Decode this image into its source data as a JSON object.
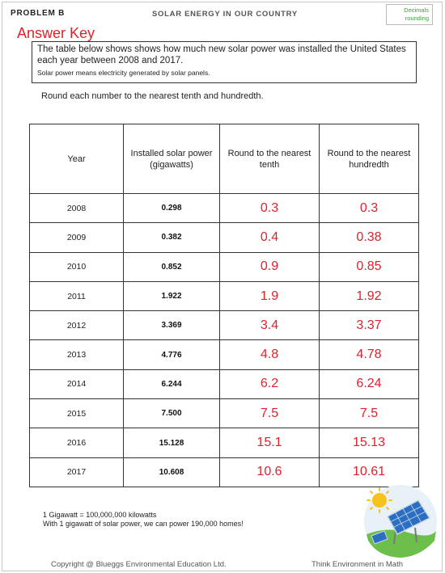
{
  "header": {
    "problem_label": "PROBLEM B",
    "title": "SOLAR ENERGY IN OUR COUNTRY",
    "topic_line1": "Decimals",
    "topic_line2": "rounding"
  },
  "answer_key_label": "Answer Key",
  "intro": {
    "text": "The table below shows shows how much new solar power was installed the United States each year between 2008 and 2017.",
    "note": "Solar power means electricity generated by solar panels."
  },
  "instruction": "Round each number to the nearest tenth and hundredth.",
  "table": {
    "headers": [
      "Year",
      "Installed solar power (gigawatts)",
      "Round to the nearest tenth",
      "Round to the nearest hundredth"
    ],
    "rows": [
      {
        "year": "2008",
        "installed": "0.298",
        "tenth": "0.3",
        "hundredth": "0.3"
      },
      {
        "year": "2009",
        "installed": "0.382",
        "tenth": "0.4",
        "hundredth": "0.38"
      },
      {
        "year": "2010",
        "installed": "0.852",
        "tenth": "0.9",
        "hundredth": "0.85"
      },
      {
        "year": "2011",
        "installed": "1.922",
        "tenth": "1.9",
        "hundredth": "1.92"
      },
      {
        "year": "2012",
        "installed": "3.369",
        "tenth": "3.4",
        "hundredth": "3.37"
      },
      {
        "year": "2013",
        "installed": "4.776",
        "tenth": "4.8",
        "hundredth": "4.78"
      },
      {
        "year": "2014",
        "installed": "6.244",
        "tenth": "6.2",
        "hundredth": "6.24"
      },
      {
        "year": "2015",
        "installed": "7.500",
        "tenth": "7.5",
        "hundredth": "7.5"
      },
      {
        "year": "2016",
        "installed": "15.128",
        "tenth": "15.1",
        "hundredth": "15.13"
      },
      {
        "year": "2017",
        "installed": "10.608",
        "tenth": "10.6",
        "hundredth": "10.61"
      }
    ]
  },
  "facts": {
    "line1": "1 Gigawatt = 100,000,000 kilowatts",
    "line2": "With 1 gigawatt of solar power, we can power 190,000 homes!"
  },
  "footer": {
    "copyright": "Copyright @ Blueggs Environmental Education Ltd.",
    "tagline": "Think Environment in Math"
  },
  "colors": {
    "answer_red": "#e3202a",
    "topic_green": "#3aa03a"
  },
  "icons": {
    "illustration": "sun-and-solar-panel-illustration"
  }
}
